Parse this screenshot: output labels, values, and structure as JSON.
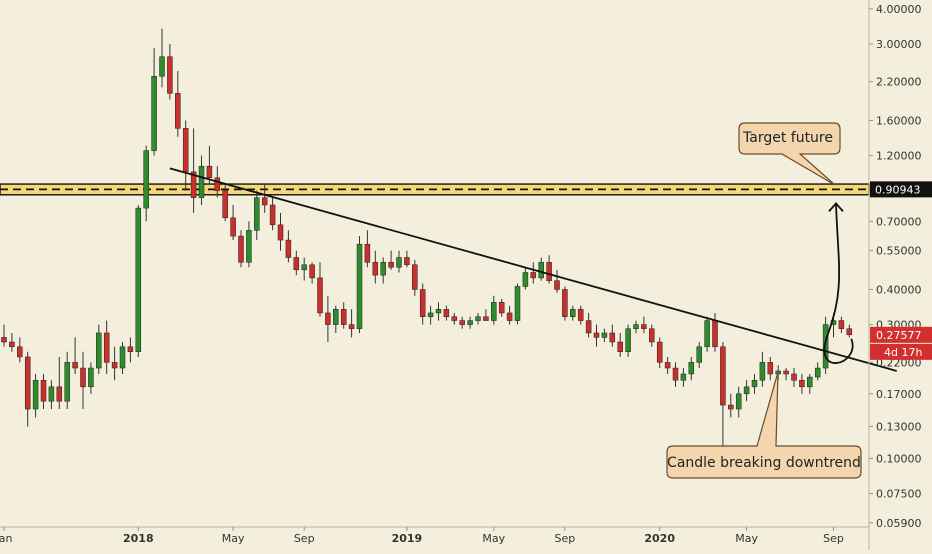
{
  "chart_data": {
    "type": "candlestick",
    "scale": "log",
    "ylim": [
      0.057,
      4.3
    ],
    "colors": {
      "background": "#f4efdc",
      "up": "#2e8b2e",
      "down": "#c9302c",
      "wick": "#333333",
      "zone_fill": "#f6d77a",
      "price_label_bg": "#d32f2f",
      "level_label_bg": "#111111",
      "callout_bg": "#f3d6ae",
      "callout_border": "#6b4a2a"
    },
    "y_ticks": [
      {
        "value": 4.0,
        "label": "4.00000"
      },
      {
        "value": 3.0,
        "label": "3.00000"
      },
      {
        "value": 2.2,
        "label": "2.20000"
      },
      {
        "value": 1.6,
        "label": "1.60000"
      },
      {
        "value": 1.2,
        "label": "1.20000"
      },
      {
        "value": 0.7,
        "label": "0.70000"
      },
      {
        "value": 0.55,
        "label": "0.55000"
      },
      {
        "value": 0.4,
        "label": "0.40000"
      },
      {
        "value": 0.3,
        "label": "0.30000"
      },
      {
        "value": 0.22,
        "label": "0.22000"
      },
      {
        "value": 0.17,
        "label": "0.17000"
      },
      {
        "value": 0.13,
        "label": "0.13000"
      },
      {
        "value": 0.1,
        "label": "0.10000"
      },
      {
        "value": 0.075,
        "label": "0.07500"
      },
      {
        "value": 0.059,
        "label": "0.05900"
      }
    ],
    "x_ticks": [
      {
        "index": 0,
        "label": "Jan",
        "bold": false
      },
      {
        "index": 17,
        "label": "2018",
        "bold": true
      },
      {
        "index": 29,
        "label": "May",
        "bold": false
      },
      {
        "index": 38,
        "label": "Sep",
        "bold": false
      },
      {
        "index": 51,
        "label": "2019",
        "bold": true
      },
      {
        "index": 62,
        "label": "May",
        "bold": false
      },
      {
        "index": 71,
        "label": "Sep",
        "bold": false
      },
      {
        "index": 83,
        "label": "2020",
        "bold": true
      },
      {
        "index": 94,
        "label": "May",
        "bold": false
      },
      {
        "index": 105,
        "label": "Sep",
        "bold": false
      }
    ],
    "candles": [
      {
        "o": 0.27,
        "h": 0.3,
        "l": 0.25,
        "c": 0.26
      },
      {
        "o": 0.26,
        "h": 0.28,
        "l": 0.24,
        "c": 0.25
      },
      {
        "o": 0.25,
        "h": 0.27,
        "l": 0.22,
        "c": 0.23
      },
      {
        "o": 0.23,
        "h": 0.24,
        "l": 0.13,
        "c": 0.15
      },
      {
        "o": 0.15,
        "h": 0.2,
        "l": 0.14,
        "c": 0.19
      },
      {
        "o": 0.19,
        "h": 0.2,
        "l": 0.15,
        "c": 0.16
      },
      {
        "o": 0.16,
        "h": 0.19,
        "l": 0.15,
        "c": 0.18
      },
      {
        "o": 0.18,
        "h": 0.23,
        "l": 0.15,
        "c": 0.16
      },
      {
        "o": 0.16,
        "h": 0.24,
        "l": 0.15,
        "c": 0.22
      },
      {
        "o": 0.22,
        "h": 0.27,
        "l": 0.2,
        "c": 0.21
      },
      {
        "o": 0.21,
        "h": 0.24,
        "l": 0.15,
        "c": 0.18
      },
      {
        "o": 0.18,
        "h": 0.22,
        "l": 0.17,
        "c": 0.21
      },
      {
        "o": 0.21,
        "h": 0.3,
        "l": 0.2,
        "c": 0.28
      },
      {
        "o": 0.28,
        "h": 0.31,
        "l": 0.2,
        "c": 0.22
      },
      {
        "o": 0.22,
        "h": 0.25,
        "l": 0.19,
        "c": 0.21
      },
      {
        "o": 0.21,
        "h": 0.26,
        "l": 0.2,
        "c": 0.25
      },
      {
        "o": 0.25,
        "h": 0.27,
        "l": 0.22,
        "c": 0.24
      },
      {
        "o": 0.24,
        "h": 0.8,
        "l": 0.23,
        "c": 0.78
      },
      {
        "o": 0.78,
        "h": 1.3,
        "l": 0.7,
        "c": 1.25
      },
      {
        "o": 1.25,
        "h": 2.9,
        "l": 1.2,
        "c": 2.3
      },
      {
        "o": 2.3,
        "h": 3.4,
        "l": 2.1,
        "c": 2.7
      },
      {
        "o": 2.7,
        "h": 3.0,
        "l": 1.9,
        "c": 2.0
      },
      {
        "o": 2.0,
        "h": 2.4,
        "l": 1.4,
        "c": 1.5
      },
      {
        "o": 1.5,
        "h": 1.6,
        "l": 0.9,
        "c": 1.05
      },
      {
        "o": 1.05,
        "h": 1.5,
        "l": 0.75,
        "c": 0.85
      },
      {
        "o": 0.85,
        "h": 1.2,
        "l": 0.8,
        "c": 1.1
      },
      {
        "o": 1.1,
        "h": 1.3,
        "l": 0.95,
        "c": 1.0
      },
      {
        "o": 1.0,
        "h": 1.1,
        "l": 0.85,
        "c": 0.9
      },
      {
        "o": 0.9,
        "h": 0.95,
        "l": 0.7,
        "c": 0.72
      },
      {
        "o": 0.72,
        "h": 0.8,
        "l": 0.6,
        "c": 0.62
      },
      {
        "o": 0.62,
        "h": 0.65,
        "l": 0.48,
        "c": 0.5
      },
      {
        "o": 0.5,
        "h": 0.7,
        "l": 0.48,
        "c": 0.65
      },
      {
        "o": 0.65,
        "h": 0.9,
        "l": 0.6,
        "c": 0.85
      },
      {
        "o": 0.85,
        "h": 0.95,
        "l": 0.75,
        "c": 0.8
      },
      {
        "o": 0.8,
        "h": 0.85,
        "l": 0.65,
        "c": 0.68
      },
      {
        "o": 0.68,
        "h": 0.75,
        "l": 0.55,
        "c": 0.6
      },
      {
        "o": 0.6,
        "h": 0.65,
        "l": 0.5,
        "c": 0.52
      },
      {
        "o": 0.52,
        "h": 0.55,
        "l": 0.45,
        "c": 0.47
      },
      {
        "o": 0.47,
        "h": 0.52,
        "l": 0.43,
        "c": 0.49
      },
      {
        "o": 0.49,
        "h": 0.5,
        "l": 0.42,
        "c": 0.44
      },
      {
        "o": 0.44,
        "h": 0.5,
        "l": 0.32,
        "c": 0.33
      },
      {
        "o": 0.33,
        "h": 0.38,
        "l": 0.26,
        "c": 0.3
      },
      {
        "o": 0.3,
        "h": 0.35,
        "l": 0.28,
        "c": 0.34
      },
      {
        "o": 0.34,
        "h": 0.36,
        "l": 0.29,
        "c": 0.3
      },
      {
        "o": 0.3,
        "h": 0.34,
        "l": 0.27,
        "c": 0.29
      },
      {
        "o": 0.29,
        "h": 0.62,
        "l": 0.28,
        "c": 0.58
      },
      {
        "o": 0.58,
        "h": 0.65,
        "l": 0.48,
        "c": 0.5
      },
      {
        "o": 0.5,
        "h": 0.55,
        "l": 0.42,
        "c": 0.45
      },
      {
        "o": 0.45,
        "h": 0.52,
        "l": 0.42,
        "c": 0.5
      },
      {
        "o": 0.5,
        "h": 0.55,
        "l": 0.47,
        "c": 0.48
      },
      {
        "o": 0.48,
        "h": 0.55,
        "l": 0.46,
        "c": 0.52
      },
      {
        "o": 0.52,
        "h": 0.55,
        "l": 0.48,
        "c": 0.49
      },
      {
        "o": 0.49,
        "h": 0.51,
        "l": 0.38,
        "c": 0.4
      },
      {
        "o": 0.4,
        "h": 0.42,
        "l": 0.3,
        "c": 0.32
      },
      {
        "o": 0.32,
        "h": 0.35,
        "l": 0.3,
        "c": 0.33
      },
      {
        "o": 0.33,
        "h": 0.36,
        "l": 0.31,
        "c": 0.34
      },
      {
        "o": 0.34,
        "h": 0.35,
        "l": 0.31,
        "c": 0.32
      },
      {
        "o": 0.32,
        "h": 0.33,
        "l": 0.3,
        "c": 0.31
      },
      {
        "o": 0.31,
        "h": 0.32,
        "l": 0.29,
        "c": 0.3
      },
      {
        "o": 0.3,
        "h": 0.32,
        "l": 0.29,
        "c": 0.31
      },
      {
        "o": 0.31,
        "h": 0.33,
        "l": 0.3,
        "c": 0.32
      },
      {
        "o": 0.32,
        "h": 0.34,
        "l": 0.31,
        "c": 0.31
      },
      {
        "o": 0.31,
        "h": 0.38,
        "l": 0.3,
        "c": 0.36
      },
      {
        "o": 0.36,
        "h": 0.37,
        "l": 0.32,
        "c": 0.33
      },
      {
        "o": 0.33,
        "h": 0.35,
        "l": 0.3,
        "c": 0.31
      },
      {
        "o": 0.31,
        "h": 0.42,
        "l": 0.3,
        "c": 0.41
      },
      {
        "o": 0.41,
        "h": 0.48,
        "l": 0.4,
        "c": 0.46
      },
      {
        "o": 0.46,
        "h": 0.5,
        "l": 0.42,
        "c": 0.44
      },
      {
        "o": 0.44,
        "h": 0.52,
        "l": 0.43,
        "c": 0.5
      },
      {
        "o": 0.5,
        "h": 0.53,
        "l": 0.42,
        "c": 0.43
      },
      {
        "o": 0.43,
        "h": 0.47,
        "l": 0.39,
        "c": 0.4
      },
      {
        "o": 0.4,
        "h": 0.41,
        "l": 0.31,
        "c": 0.32
      },
      {
        "o": 0.32,
        "h": 0.35,
        "l": 0.31,
        "c": 0.34
      },
      {
        "o": 0.34,
        "h": 0.35,
        "l": 0.3,
        "c": 0.31
      },
      {
        "o": 0.31,
        "h": 0.33,
        "l": 0.27,
        "c": 0.28
      },
      {
        "o": 0.28,
        "h": 0.3,
        "l": 0.25,
        "c": 0.27
      },
      {
        "o": 0.27,
        "h": 0.29,
        "l": 0.26,
        "c": 0.28
      },
      {
        "o": 0.28,
        "h": 0.3,
        "l": 0.25,
        "c": 0.26
      },
      {
        "o": 0.26,
        "h": 0.28,
        "l": 0.23,
        "c": 0.24
      },
      {
        "o": 0.24,
        "h": 0.3,
        "l": 0.23,
        "c": 0.29
      },
      {
        "o": 0.29,
        "h": 0.31,
        "l": 0.28,
        "c": 0.3
      },
      {
        "o": 0.3,
        "h": 0.32,
        "l": 0.28,
        "c": 0.29
      },
      {
        "o": 0.29,
        "h": 0.3,
        "l": 0.25,
        "c": 0.26
      },
      {
        "o": 0.26,
        "h": 0.27,
        "l": 0.21,
        "c": 0.22
      },
      {
        "o": 0.22,
        "h": 0.23,
        "l": 0.2,
        "c": 0.21
      },
      {
        "o": 0.21,
        "h": 0.22,
        "l": 0.18,
        "c": 0.19
      },
      {
        "o": 0.19,
        "h": 0.21,
        "l": 0.18,
        "c": 0.2
      },
      {
        "o": 0.2,
        "h": 0.23,
        "l": 0.19,
        "c": 0.22
      },
      {
        "o": 0.22,
        "h": 0.26,
        "l": 0.21,
        "c": 0.25
      },
      {
        "o": 0.25,
        "h": 0.32,
        "l": 0.24,
        "c": 0.31
      },
      {
        "o": 0.31,
        "h": 0.33,
        "l": 0.24,
        "c": 0.25
      },
      {
        "o": 0.25,
        "h": 0.26,
        "l": 0.11,
        "c": 0.155
      },
      {
        "o": 0.155,
        "h": 0.17,
        "l": 0.14,
        "c": 0.15
      },
      {
        "o": 0.15,
        "h": 0.18,
        "l": 0.14,
        "c": 0.17
      },
      {
        "o": 0.17,
        "h": 0.19,
        "l": 0.16,
        "c": 0.18
      },
      {
        "o": 0.18,
        "h": 0.2,
        "l": 0.17,
        "c": 0.19
      },
      {
        "o": 0.19,
        "h": 0.24,
        "l": 0.18,
        "c": 0.22
      },
      {
        "o": 0.22,
        "h": 0.23,
        "l": 0.19,
        "c": 0.2
      },
      {
        "o": 0.2,
        "h": 0.215,
        "l": 0.19,
        "c": 0.205
      },
      {
        "o": 0.205,
        "h": 0.21,
        "l": 0.19,
        "c": 0.2
      },
      {
        "o": 0.2,
        "h": 0.21,
        "l": 0.18,
        "c": 0.19
      },
      {
        "o": 0.19,
        "h": 0.2,
        "l": 0.17,
        "c": 0.18
      },
      {
        "o": 0.18,
        "h": 0.2,
        "l": 0.17,
        "c": 0.195
      },
      {
        "o": 0.195,
        "h": 0.22,
        "l": 0.19,
        "c": 0.21
      },
      {
        "o": 0.21,
        "h": 0.32,
        "l": 0.2,
        "c": 0.3
      },
      {
        "o": 0.3,
        "h": 0.33,
        "l": 0.27,
        "c": 0.31
      },
      {
        "o": 0.31,
        "h": 0.32,
        "l": 0.28,
        "c": 0.29
      },
      {
        "o": 0.29,
        "h": 0.3,
        "l": 0.27,
        "c": 0.276
      }
    ],
    "horizontal_level": {
      "value": 0.90943,
      "label": "0.90943"
    },
    "resistance_zone": [
      0.87,
      0.95
    ],
    "trendline": {
      "from": {
        "index": 21,
        "value": 1.08
      },
      "to": {
        "index": 113,
        "value": 0.205
      }
    },
    "current_price": {
      "value": 0.27577,
      "label": "0.27577",
      "countdown": "4d 17h"
    },
    "annotations": {
      "target": "Target future",
      "breakout": "Candle breaking downtrend"
    }
  }
}
